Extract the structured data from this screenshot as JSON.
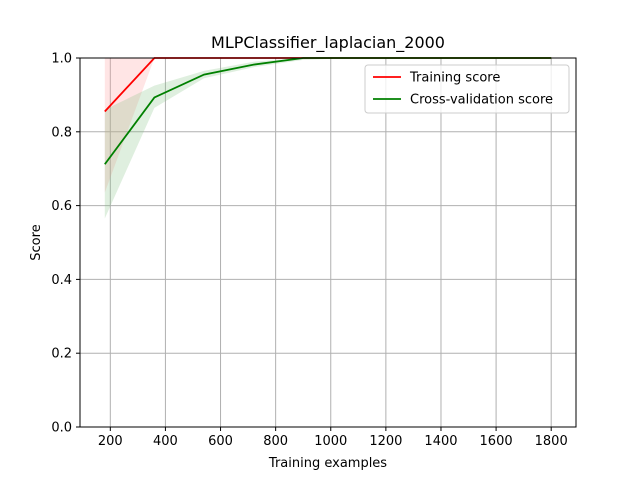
{
  "chart_data": {
    "type": "line",
    "title": "MLPClassifier_laplacian_2000",
    "xlabel": "Training examples",
    "ylabel": "Score",
    "xlim": [
      90,
      1890
    ],
    "ylim": [
      0.0,
      1.0
    ],
    "xticks": [
      200,
      400,
      600,
      800,
      1000,
      1200,
      1400,
      1600,
      1800
    ],
    "yticks": [
      0.0,
      0.2,
      0.4,
      0.6,
      0.8,
      1.0
    ],
    "xtick_labels": [
      "200",
      "400",
      "600",
      "800",
      "1000",
      "1200",
      "1400",
      "1600",
      "1800"
    ],
    "ytick_labels": [
      "0.0",
      "0.2",
      "0.4",
      "0.6",
      "0.8",
      "1.0"
    ],
    "grid": true,
    "legend_position": "top-right",
    "x": [
      180,
      360,
      540,
      720,
      900,
      1080,
      1260,
      1440,
      1620,
      1800
    ],
    "series": [
      {
        "name": "Training score",
        "color": "#ff0000",
        "band_color": "#ff9999",
        "values": [
          0.855,
          1.0,
          1.0,
          1.0,
          1.0,
          1.0,
          1.0,
          1.0,
          1.0,
          1.0
        ],
        "upper": [
          1.0,
          1.0,
          1.0,
          1.0,
          1.0,
          1.0,
          1.0,
          1.0,
          1.0,
          1.0
        ],
        "lower": [
          0.635,
          1.0,
          1.0,
          1.0,
          1.0,
          1.0,
          1.0,
          1.0,
          1.0,
          1.0
        ]
      },
      {
        "name": "Cross-validation score",
        "color": "#008000",
        "band_color": "#80c080",
        "values": [
          0.712,
          0.893,
          0.955,
          0.982,
          1.0,
          1.0,
          1.0,
          1.0,
          1.0,
          1.0
        ],
        "upper": [
          0.86,
          0.925,
          0.965,
          0.99,
          1.0,
          1.0,
          1.0,
          1.0,
          1.0,
          1.0
        ],
        "lower": [
          0.565,
          0.865,
          0.945,
          0.975,
          0.995,
          1.0,
          1.0,
          1.0,
          1.0,
          1.0
        ]
      }
    ]
  }
}
